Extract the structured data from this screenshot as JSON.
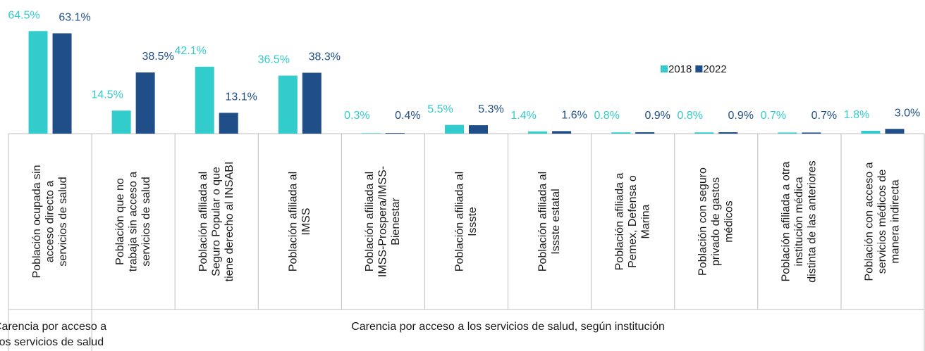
{
  "chart_data": {
    "type": "bar",
    "categories": [
      [
        "Población ocupada sin",
        "acceso directo a",
        "servicios de salud"
      ],
      [
        "Población que no",
        "trabaja sin acceso a",
        "servicios de salud"
      ],
      [
        "Población afiliada al",
        "Seguro Popular o que",
        "tiene derecho al INSABI"
      ],
      [
        "Población afiliada al",
        "IMSS"
      ],
      [
        "Población afiliada al",
        "IMSS-Prospera/IMSS-",
        "Bienestar"
      ],
      [
        "Población afiliada al",
        "Issste"
      ],
      [
        "Población afiliada al",
        "Issste estatal"
      ],
      [
        "Población afiliada a",
        "Pemex, Defensa o",
        "Marina"
      ],
      [
        "Población con seguro",
        "privado de gastos",
        "médicos"
      ],
      [
        "Población afiliada a otra",
        "institución médica",
        "distinta de las anteriores"
      ],
      [
        "Población con acceso a",
        "servicios médicos de",
        "manera indirecta"
      ]
    ],
    "series": [
      {
        "name": "2018",
        "color": "#33cccc",
        "values": [
          64.5,
          14.5,
          42.1,
          36.5,
          0.3,
          5.5,
          1.4,
          0.8,
          0.8,
          0.7,
          1.8
        ],
        "value_labels": [
          "64.5%",
          "14.5%",
          "42.1%",
          "36.5%",
          "0.3%",
          "5.5%",
          "1.4%",
          "0.8%",
          "0.8%",
          "0.7%",
          "1.8%"
        ]
      },
      {
        "name": "2022",
        "color": "#1f4e89",
        "values": [
          63.1,
          38.5,
          13.1,
          38.3,
          0.4,
          5.3,
          1.6,
          0.9,
          0.9,
          0.7,
          3.0
        ],
        "value_labels": [
          "63.1%",
          "38.5%",
          "13.1%",
          "38.3%",
          "0.4%",
          "5.3%",
          "1.6%",
          "0.9%",
          "0.9%",
          "0.7%",
          "3.0%"
        ]
      }
    ],
    "group_labels": [
      [
        "Carencia por acceso a",
        "los servicios de salud"
      ],
      [
        "Carencia por acceso a los servicios de salud, según institución"
      ]
    ],
    "legend": "top-right"
  }
}
